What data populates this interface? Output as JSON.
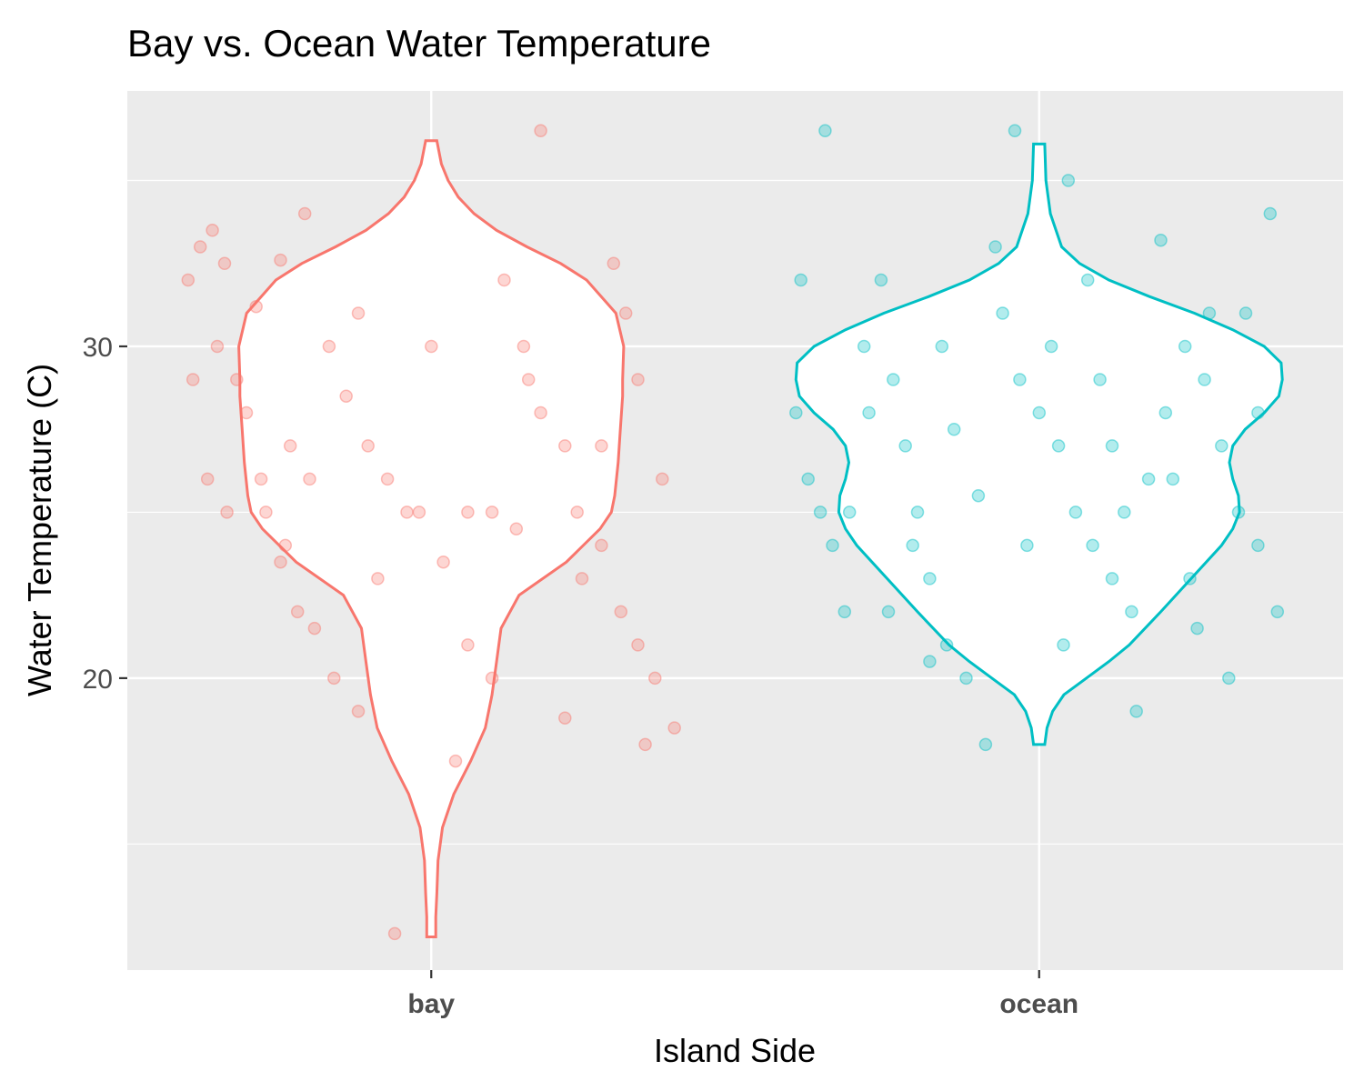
{
  "chart_data": {
    "type": "violin",
    "title": "Bay vs. Ocean Water Temperature",
    "xlabel": "Island Side",
    "ylabel": "Water Temperature (C)",
    "categories": [
      "bay",
      "ocean"
    ],
    "y_ticks": [
      20,
      30
    ],
    "ylim": [
      11.2,
      37.7
    ],
    "grid": true,
    "legend": "none",
    "colors": {
      "panel_background": "#EBEBEB",
      "grid": "#FFFFFF",
      "bay": "#F8766D",
      "ocean": "#00BFC4",
      "violin_fill": "#FFFFFF",
      "axis_text": "#4D4D4D"
    },
    "series": [
      {
        "category": "bay",
        "violin": {
          "y_min": 12.2,
          "y_max": 36.2,
          "profile": [
            [
              12.2,
              0.04
            ],
            [
              12.8,
              0.04
            ],
            [
              13.5,
              0.05
            ],
            [
              14.5,
              0.06
            ],
            [
              15.5,
              0.1
            ],
            [
              16.5,
              0.2
            ],
            [
              17.5,
              0.35
            ],
            [
              18.5,
              0.48
            ],
            [
              19.5,
              0.54
            ],
            [
              20.5,
              0.58
            ],
            [
              21.5,
              0.62
            ],
            [
              22.5,
              0.78
            ],
            [
              23.5,
              1.2
            ],
            [
              24.5,
              1.5
            ],
            [
              25.0,
              1.6
            ],
            [
              25.5,
              1.63
            ],
            [
              26.5,
              1.66
            ],
            [
              27.5,
              1.68
            ],
            [
              28.5,
              1.7
            ],
            [
              29.0,
              1.7
            ],
            [
              30.0,
              1.71
            ],
            [
              31.0,
              1.64
            ],
            [
              32.0,
              1.38
            ],
            [
              32.5,
              1.15
            ],
            [
              33.0,
              0.85
            ],
            [
              33.5,
              0.58
            ],
            [
              34.0,
              0.38
            ],
            [
              34.5,
              0.24
            ],
            [
              35.0,
              0.15
            ],
            [
              35.5,
              0.09
            ],
            [
              36.2,
              0.05
            ]
          ]
        },
        "points": [
          [
            -1.0,
            32.0
          ],
          [
            -0.95,
            33.0
          ],
          [
            -0.9,
            33.5
          ],
          [
            -0.85,
            32.5
          ],
          [
            -0.72,
            31.2
          ],
          [
            -0.8,
            29.0
          ],
          [
            -0.88,
            30.0
          ],
          [
            -0.92,
            26.0
          ],
          [
            -0.84,
            25.0
          ],
          [
            -0.76,
            28.0
          ],
          [
            -0.68,
            25.0
          ],
          [
            -0.6,
            24.0
          ],
          [
            -0.55,
            22.0
          ],
          [
            -0.48,
            21.5
          ],
          [
            -0.4,
            20.0
          ],
          [
            -0.3,
            19.0
          ],
          [
            -0.52,
            34.0
          ],
          [
            -0.62,
            32.6
          ],
          [
            -0.42,
            30.0
          ],
          [
            -0.35,
            28.5
          ],
          [
            -0.26,
            27.0
          ],
          [
            -0.18,
            26.0
          ],
          [
            -0.1,
            25.0
          ],
          [
            0.05,
            23.5
          ],
          [
            0.15,
            21.0
          ],
          [
            0.25,
            20.0
          ],
          [
            0.3,
            32.0
          ],
          [
            0.38,
            30.0
          ],
          [
            0.45,
            28.0
          ],
          [
            0.55,
            27.0
          ],
          [
            0.6,
            25.0
          ],
          [
            0.7,
            24.0
          ],
          [
            0.78,
            22.0
          ],
          [
            0.85,
            21.0
          ],
          [
            0.92,
            20.0
          ],
          [
            1.0,
            18.5
          ],
          [
            -0.58,
            27.0
          ],
          [
            -0.5,
            26.0
          ],
          [
            -0.22,
            23.0
          ],
          [
            0.62,
            23.0
          ],
          [
            -0.7,
            26.0
          ],
          [
            0.85,
            29.0
          ],
          [
            0.95,
            26.0
          ],
          [
            -0.98,
            29.0
          ],
          [
            0.1,
            17.5
          ],
          [
            -0.15,
            12.3
          ],
          [
            0.45,
            36.5
          ],
          [
            0.25,
            25.0
          ],
          [
            0.35,
            24.5
          ],
          [
            -0.05,
            25.0
          ],
          [
            0.15,
            25.0
          ],
          [
            0.4,
            29.0
          ],
          [
            -0.3,
            31.0
          ],
          [
            0.75,
            32.5
          ],
          [
            0.88,
            18.0
          ],
          [
            0.55,
            18.8
          ],
          [
            0.8,
            31.0
          ],
          [
            0.7,
            27.0
          ],
          [
            -0.62,
            23.5
          ],
          [
            0.0,
            30.0
          ]
        ]
      },
      {
        "category": "ocean",
        "violin": {
          "y_min": 18.0,
          "y_max": 36.1,
          "profile": [
            [
              18.0,
              0.05
            ],
            [
              18.5,
              0.07
            ],
            [
              19.0,
              0.12
            ],
            [
              19.5,
              0.22
            ],
            [
              20.0,
              0.42
            ],
            [
              20.5,
              0.62
            ],
            [
              21.0,
              0.8
            ],
            [
              22.0,
              1.08
            ],
            [
              23.0,
              1.35
            ],
            [
              24.0,
              1.62
            ],
            [
              24.5,
              1.72
            ],
            [
              25.0,
              1.78
            ],
            [
              25.5,
              1.77
            ],
            [
              26.0,
              1.72
            ],
            [
              26.5,
              1.69
            ],
            [
              27.0,
              1.72
            ],
            [
              27.5,
              1.83
            ],
            [
              28.0,
              2.0
            ],
            [
              28.5,
              2.13
            ],
            [
              29.0,
              2.16
            ],
            [
              29.5,
              2.15
            ],
            [
              30.0,
              2.0
            ],
            [
              30.5,
              1.72
            ],
            [
              31.0,
              1.38
            ],
            [
              31.5,
              0.98
            ],
            [
              32.0,
              0.62
            ],
            [
              32.5,
              0.36
            ],
            [
              33.0,
              0.2
            ],
            [
              34.0,
              0.1
            ],
            [
              35.0,
              0.06
            ],
            [
              36.1,
              0.05
            ]
          ]
        },
        "points": [
          [
            -1.0,
            28.0
          ],
          [
            -0.95,
            26.0
          ],
          [
            -0.9,
            25.0
          ],
          [
            -0.85,
            24.0
          ],
          [
            -0.8,
            22.0
          ],
          [
            -0.72,
            30.0
          ],
          [
            -0.65,
            32.0
          ],
          [
            -0.6,
            29.0
          ],
          [
            -0.55,
            27.0
          ],
          [
            -0.5,
            25.0
          ],
          [
            -0.45,
            23.0
          ],
          [
            -0.38,
            21.0
          ],
          [
            -0.3,
            20.0
          ],
          [
            -0.22,
            18.0
          ],
          [
            -0.15,
            31.0
          ],
          [
            -0.08,
            29.0
          ],
          [
            0.0,
            28.0
          ],
          [
            0.08,
            27.0
          ],
          [
            0.15,
            25.0
          ],
          [
            0.22,
            24.0
          ],
          [
            0.3,
            23.0
          ],
          [
            0.38,
            22.0
          ],
          [
            0.45,
            26.0
          ],
          [
            0.52,
            28.0
          ],
          [
            0.6,
            30.0
          ],
          [
            0.68,
            29.0
          ],
          [
            0.75,
            27.0
          ],
          [
            0.82,
            25.0
          ],
          [
            0.9,
            24.0
          ],
          [
            0.98,
            22.0
          ],
          [
            -0.98,
            32.0
          ],
          [
            -0.7,
            28.0
          ],
          [
            -0.4,
            30.0
          ],
          [
            -0.1,
            36.5
          ],
          [
            0.2,
            32.0
          ],
          [
            0.5,
            33.2
          ],
          [
            0.85,
            31.0
          ],
          [
            0.95,
            34.0
          ],
          [
            -0.35,
            27.5
          ],
          [
            -0.25,
            25.5
          ],
          [
            0.05,
            30.0
          ],
          [
            0.35,
            25.0
          ],
          [
            0.62,
            23.0
          ],
          [
            0.78,
            20.0
          ],
          [
            -0.62,
            22.0
          ],
          [
            0.1,
            21.0
          ],
          [
            0.4,
            19.0
          ],
          [
            -0.88,
            36.5
          ],
          [
            0.25,
            29.0
          ],
          [
            -0.52,
            24.0
          ],
          [
            0.7,
            31.0
          ],
          [
            -0.18,
            33.0
          ],
          [
            0.12,
            35.0
          ],
          [
            -0.45,
            20.5
          ],
          [
            0.55,
            26.0
          ],
          [
            0.9,
            28.0
          ],
          [
            -0.78,
            25.0
          ],
          [
            0.3,
            27.0
          ],
          [
            -0.05,
            24.0
          ],
          [
            0.65,
            21.5
          ]
        ]
      }
    ]
  }
}
